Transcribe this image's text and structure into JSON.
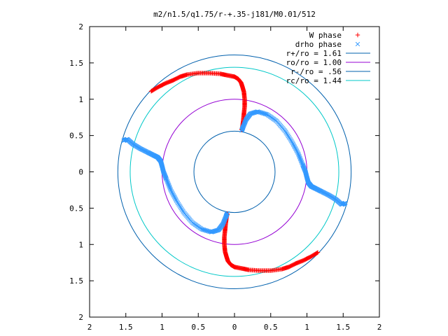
{
  "chart_data": {
    "type": "scatter",
    "title": "m2/n1.5/q1.75/r-+.35-j181/M0.01/512",
    "xlim": [
      -2,
      2
    ],
    "ylim": [
      -2,
      2
    ],
    "x_ticks": [
      "2",
      "1.5",
      "1",
      "0.5",
      "0",
      "0.5",
      "1",
      "1.5",
      "2"
    ],
    "y_ticks": [
      "2",
      "1.5",
      "1",
      "0.5",
      "0",
      "0.5",
      "1",
      "1.5",
      "2"
    ],
    "tick_values": [
      -2,
      -1.5,
      -1,
      -0.5,
      0,
      0.5,
      1,
      1.5,
      2
    ],
    "grid": false,
    "legend_position": "top-right",
    "circles": [
      {
        "name": "r+/ro = 1.61",
        "radius": 1.61,
        "color": "#0060ad"
      },
      {
        "name": "ro/ro = 1.00",
        "radius": 1.0,
        "color": "#9400d3"
      },
      {
        "name": "r-/ro = .56",
        "radius": 0.56,
        "color": "#0060ad"
      },
      {
        "name": "rc/ro = 1.44",
        "radius": 1.44,
        "color": "#00c8c8"
      }
    ],
    "series": [
      {
        "name": "W phase",
        "marker": "+",
        "color": "#ff0000",
        "arms": [
          {
            "x": [
              0.1,
              0.11,
              0.12,
              0.13,
              0.14,
              0.14,
              0.13,
              0.11,
              0.09,
              0.05,
              0.0,
              -0.1,
              -0.2,
              -0.35,
              -0.5,
              -0.65,
              -0.75,
              -0.85,
              -0.95,
              -1.05,
              -1.15
            ],
            "y": [
              0.58,
              0.62,
              0.7,
              0.8,
              0.9,
              1.0,
              1.1,
              1.17,
              1.23,
              1.28,
              1.31,
              1.33,
              1.35,
              1.36,
              1.36,
              1.34,
              1.31,
              1.26,
              1.22,
              1.17,
              1.11
            ]
          },
          {
            "x": [
              -0.1,
              -0.11,
              -0.12,
              -0.13,
              -0.14,
              -0.14,
              -0.13,
              -0.11,
              -0.09,
              -0.05,
              0.0,
              0.1,
              0.2,
              0.35,
              0.5,
              0.65,
              0.75,
              0.85,
              0.95,
              1.05,
              1.15
            ],
            "y": [
              -0.58,
              -0.62,
              -0.7,
              -0.8,
              -0.9,
              -1.0,
              -1.1,
              -1.17,
              -1.23,
              -1.28,
              -1.31,
              -1.33,
              -1.35,
              -1.36,
              -1.36,
              -1.34,
              -1.31,
              -1.26,
              -1.22,
              -1.17,
              -1.11
            ]
          }
        ]
      },
      {
        "name": "drho phase",
        "marker": "x",
        "color": "#3399ff",
        "arms": [
          {
            "x": [
              0.1,
              0.12,
              0.16,
              0.22,
              0.32,
              0.45,
              0.58,
              0.7,
              0.8,
              0.88,
              0.94,
              0.98,
              1.0,
              1.02,
              1.06,
              1.12,
              1.2,
              1.3,
              1.4,
              1.48,
              1.53
            ],
            "y": [
              0.57,
              0.62,
              0.72,
              0.8,
              0.83,
              0.79,
              0.7,
              0.56,
              0.4,
              0.25,
              0.1,
              0.0,
              -0.08,
              -0.15,
              -0.2,
              -0.23,
              -0.27,
              -0.32,
              -0.38,
              -0.45,
              -0.43
            ]
          },
          {
            "x": [
              -0.1,
              -0.12,
              -0.16,
              -0.22,
              -0.32,
              -0.45,
              -0.58,
              -0.7,
              -0.8,
              -0.88,
              -0.94,
              -0.98,
              -1.0,
              -1.02,
              -1.06,
              -1.12,
              -1.2,
              -1.3,
              -1.4,
              -1.48,
              -1.53
            ],
            "y": [
              -0.57,
              -0.62,
              -0.72,
              -0.8,
              -0.83,
              -0.79,
              -0.7,
              -0.56,
              -0.4,
              -0.25,
              -0.1,
              0.0,
              0.08,
              0.15,
              0.2,
              0.23,
              0.27,
              0.32,
              0.38,
              0.45,
              0.43
            ]
          }
        ]
      }
    ]
  }
}
